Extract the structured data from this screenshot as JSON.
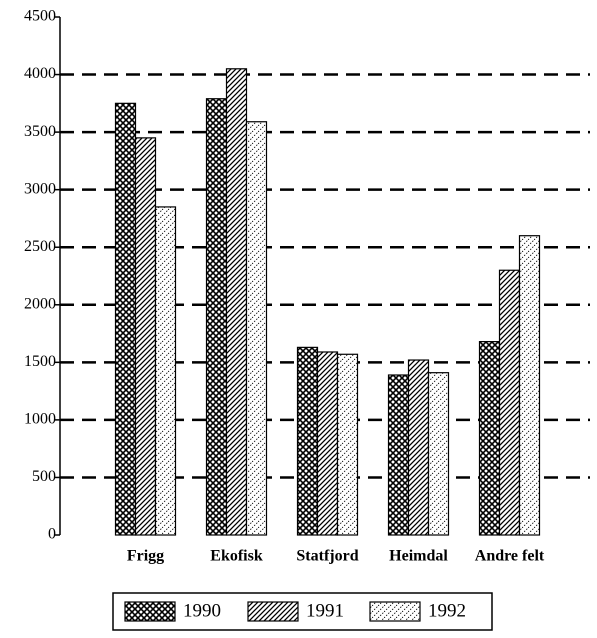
{
  "chart_data": {
    "type": "bar",
    "categories": [
      "Frigg",
      "Ekofisk",
      "Statfjord",
      "Heimdal",
      "Andre felt"
    ],
    "series": [
      {
        "name": "1990",
        "color": "#000000",
        "values": [
          3750,
          3790,
          1630,
          1390,
          1680
        ]
      },
      {
        "name": "1991",
        "color": "#000000",
        "values": [
          3450,
          4050,
          1590,
          1520,
          2300
        ]
      },
      {
        "name": "1992",
        "color": "#000000",
        "values": [
          2850,
          3590,
          1570,
          1410,
          2600
        ]
      }
    ],
    "ylim": [
      0,
      4500
    ],
    "yticks": [
      0,
      500,
      1000,
      1500,
      2000,
      2500,
      3000,
      3500,
      4000,
      4500
    ],
    "grid": true,
    "legend": "bottom"
  }
}
